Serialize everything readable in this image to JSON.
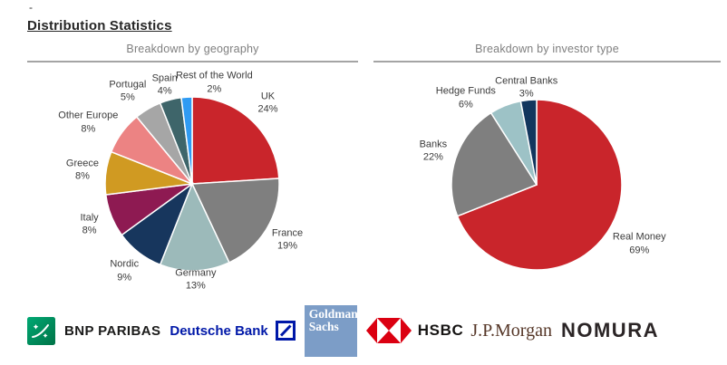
{
  "page": {
    "dash": "-",
    "title": "Distribution Statistics"
  },
  "chart_data": [
    {
      "type": "pie",
      "title": "Breakdown by geography",
      "unit": "%",
      "legend_position": "around-slices",
      "slices": [
        {
          "label": "UK",
          "value": 24,
          "color": "#c9252b"
        },
        {
          "label": "France",
          "value": 19,
          "color": "#7f7f7f"
        },
        {
          "label": "Germany",
          "value": 13,
          "color": "#9cbaba"
        },
        {
          "label": "Nordic",
          "value": 9,
          "color": "#17365d"
        },
        {
          "label": "Italy",
          "value": 8,
          "color": "#8e1a52"
        },
        {
          "label": "Greece",
          "value": 8,
          "color": "#d09a22"
        },
        {
          "label": "Other Europe",
          "value": 8,
          "color": "#ec8383"
        },
        {
          "label": "Portugal",
          "value": 5,
          "color": "#a6a6a6"
        },
        {
          "label": "Spain",
          "value": 4,
          "color": "#3e656a"
        },
        {
          "label": "Rest of the World",
          "value": 2,
          "color": "#2f9bf3"
        }
      ]
    },
    {
      "type": "pie",
      "title": "Breakdown by investor type",
      "unit": "%",
      "legend_position": "around-slices",
      "slices": [
        {
          "label": "Real Money",
          "value": 69,
          "color": "#c9252b"
        },
        {
          "label": "Banks",
          "value": 22,
          "color": "#7f7f7f"
        },
        {
          "label": "Hedge Funds",
          "value": 6,
          "color": "#9dc2c6"
        },
        {
          "label": "Central Banks",
          "value": 3,
          "color": "#12365e"
        }
      ]
    }
  ],
  "logos": {
    "bnp_paribas": {
      "label": "BNP PARIBAS",
      "brand_green": "#00915a",
      "text_color": "#1b1b1a"
    },
    "deutsche_bank": {
      "label": "Deutsche Bank",
      "brand_blue": "#0018a8"
    },
    "goldman_sachs": {
      "line1": "Goldman",
      "line2": "Sachs",
      "brand_blue": "#7c9dc7"
    },
    "hsbc": {
      "label": "HSBC",
      "brand_red": "#db0011",
      "text_color": "#161413"
    },
    "jpmorgan": {
      "label": "J.P.Morgan",
      "text_color": "#553627"
    },
    "nomura": {
      "label": "NOMURA",
      "text_color": "#2b2526"
    }
  }
}
